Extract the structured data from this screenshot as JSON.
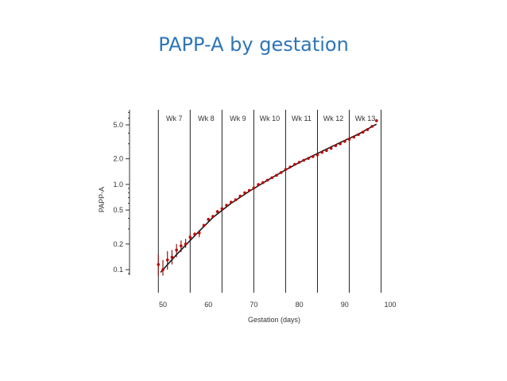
{
  "title": "PAPP-A by gestation",
  "chart_data": {
    "type": "scatter",
    "title": "PAPP-A by gestation",
    "xlabel": "Gestation (days)",
    "ylabel": "PAPP-A",
    "xlim": [
      48,
      100
    ],
    "ylim": [
      0.08,
      7.5
    ],
    "y_scale": "log",
    "x_ticks": [
      50,
      60,
      70,
      80,
      90,
      100
    ],
    "x_tick_labels": [
      "50",
      "60",
      "70",
      "80",
      "90",
      "100"
    ],
    "y_ticks": [
      0.1,
      0.2,
      0.5,
      1.0,
      2.0,
      5.0
    ],
    "y_tick_labels": [
      "0.1",
      "0.2",
      "0.5",
      "1.0",
      "2.0",
      "5.0"
    ],
    "week_boundaries": [
      49,
      56,
      63,
      70,
      77,
      84,
      91,
      98
    ],
    "week_labels": [
      "Wk 7",
      "Wk 8",
      "Wk 9",
      "Wk 10",
      "Wk 11",
      "Wk 12",
      "Wk 13"
    ],
    "series": [
      {
        "marker": "point",
        "color": "#c00000",
        "points": [
          {
            "x": 49,
            "y": 0.115,
            "lo": 0.085,
            "hi": 0.15
          },
          {
            "x": 50,
            "y": 0.1,
            "lo": 0.085,
            "hi": 0.13
          },
          {
            "x": 51,
            "y": 0.13,
            "lo": 0.1,
            "hi": 0.165
          },
          {
            "x": 52,
            "y": 0.14,
            "lo": 0.115,
            "hi": 0.17
          },
          {
            "x": 53,
            "y": 0.17,
            "lo": 0.14,
            "hi": 0.2
          },
          {
            "x": 54,
            "y": 0.19,
            "lo": 0.16,
            "hi": 0.22
          },
          {
            "x": 55,
            "y": 0.2,
            "lo": 0.18,
            "hi": 0.23
          },
          {
            "x": 56,
            "y": 0.24,
            "lo": 0.22,
            "hi": 0.265
          },
          {
            "x": 57,
            "y": 0.26,
            "lo": 0.25,
            "hi": 0.275
          },
          {
            "x": 58,
            "y": 0.27,
            "lo": 0.24,
            "hi": 0.29
          },
          {
            "x": 59,
            "y": 0.33,
            "lo": 0.32,
            "hi": 0.345
          },
          {
            "x": 60,
            "y": 0.39,
            "lo": 0.37,
            "hi": 0.4
          },
          {
            "x": 61,
            "y": 0.42,
            "lo": 0.4,
            "hi": 0.44
          },
          {
            "x": 62,
            "y": 0.48,
            "lo": 0.46,
            "hi": 0.5
          },
          {
            "x": 63,
            "y": 0.52,
            "lo": 0.5,
            "hi": 0.54
          },
          {
            "x": 64,
            "y": 0.57
          },
          {
            "x": 65,
            "y": 0.62
          },
          {
            "x": 66,
            "y": 0.66
          },
          {
            "x": 67,
            "y": 0.73
          },
          {
            "x": 68,
            "y": 0.8
          },
          {
            "x": 69,
            "y": 0.85
          },
          {
            "x": 70,
            "y": 0.91
          },
          {
            "x": 71,
            "y": 1.0
          },
          {
            "x": 72,
            "y": 1.05
          },
          {
            "x": 73,
            "y": 1.12
          },
          {
            "x": 74,
            "y": 1.2
          },
          {
            "x": 75,
            "y": 1.28
          },
          {
            "x": 76,
            "y": 1.38
          },
          {
            "x": 77,
            "y": 1.5
          },
          {
            "x": 78,
            "y": 1.6
          },
          {
            "x": 79,
            "y": 1.72
          },
          {
            "x": 80,
            "y": 1.82
          },
          {
            "x": 81,
            "y": 1.92
          },
          {
            "x": 82,
            "y": 2.02
          },
          {
            "x": 83,
            "y": 2.12
          },
          {
            "x": 84,
            "y": 2.22
          },
          {
            "x": 85,
            "y": 2.38
          },
          {
            "x": 86,
            "y": 2.5
          },
          {
            "x": 87,
            "y": 2.65
          },
          {
            "x": 88,
            "y": 2.85
          },
          {
            "x": 89,
            "y": 3.0
          },
          {
            "x": 90,
            "y": 3.2
          },
          {
            "x": 91,
            "y": 3.4
          },
          {
            "x": 92,
            "y": 3.6
          },
          {
            "x": 93,
            "y": 3.85
          },
          {
            "x": 94,
            "y": 4.1
          },
          {
            "x": 95,
            "y": 4.4
          },
          {
            "x": 96,
            "y": 4.8
          },
          {
            "x": 97,
            "y": 5.6
          }
        ]
      },
      {
        "marker": "line",
        "color": "#1a1a1a",
        "points": [
          {
            "x": 49.5,
            "y": 0.093
          },
          {
            "x": 53,
            "y": 0.15
          },
          {
            "x": 57,
            "y": 0.25
          },
          {
            "x": 61,
            "y": 0.41
          },
          {
            "x": 65,
            "y": 0.6
          },
          {
            "x": 69,
            "y": 0.83
          },
          {
            "x": 73,
            "y": 1.12
          },
          {
            "x": 77,
            "y": 1.48
          },
          {
            "x": 81,
            "y": 1.93
          },
          {
            "x": 85,
            "y": 2.45
          },
          {
            "x": 89,
            "y": 3.1
          },
          {
            "x": 93,
            "y": 3.9
          },
          {
            "x": 97,
            "y": 5.1
          }
        ]
      }
    ]
  }
}
